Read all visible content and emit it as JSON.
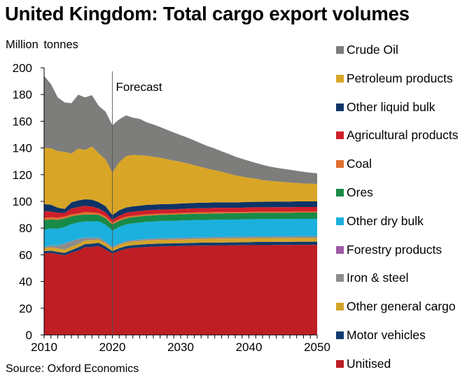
{
  "chart_data": {
    "type": "area",
    "stacked": true,
    "title": "United Kingdom: Total cargo export volumes",
    "ylabel": "Million  tonnes",
    "xlabel": "",
    "source": "Source: Oxford Economics",
    "ylim": [
      0,
      200
    ],
    "yticks": [
      0,
      20,
      40,
      60,
      80,
      100,
      120,
      140,
      160,
      180,
      200
    ],
    "xlim": [
      2010,
      2050
    ],
    "xticks": [
      2010,
      2020,
      2030,
      2040,
      2050
    ],
    "grid": false,
    "legend_position": "right",
    "annotation": {
      "text": "Forecast",
      "x": 2020
    },
    "x": [
      2010,
      2011,
      2012,
      2013,
      2014,
      2015,
      2016,
      2017,
      2018,
      2019,
      2020,
      2021,
      2022,
      2023,
      2024,
      2025,
      2026,
      2027,
      2028,
      2029,
      2030,
      2031,
      2032,
      2033,
      2034,
      2035,
      2036,
      2037,
      2038,
      2039,
      2040,
      2041,
      2042,
      2043,
      2044,
      2045,
      2046,
      2047,
      2048,
      2049,
      2050
    ],
    "series": [
      {
        "name": "Unitised",
        "color": "#BE1E24",
        "values": [
          61,
          61.5,
          60.5,
          59.7,
          61.5,
          63.2,
          65.8,
          65.8,
          66.6,
          64,
          61,
          63,
          64.5,
          65.2,
          65.6,
          65.9,
          66.1,
          66.3,
          66.4,
          66.5,
          66.6,
          66.7,
          66.8,
          66.9,
          66.9,
          67,
          67,
          67.1,
          67.1,
          67.2,
          67.2,
          67.3,
          67.3,
          67.3,
          67.4,
          67.4,
          67.4,
          67.5,
          67.5,
          67.5,
          67.5
        ]
      },
      {
        "name": "Motor vehicles",
        "color": "#0D3A6E",
        "values": [
          1.7,
          1.6,
          1.6,
          1.7,
          2,
          2.4,
          2.2,
          2.5,
          2.4,
          2.3,
          1.7,
          1.9,
          2,
          2,
          2,
          2.1,
          2.1,
          2.1,
          2.1,
          2.1,
          2.1,
          2.1,
          2.2,
          2.2,
          2.2,
          2.2,
          2.2,
          2.2,
          2.2,
          2.2,
          2.3,
          2.3,
          2.3,
          2.3,
          2.3,
          2.3,
          2.3,
          2.3,
          2.3,
          2.3,
          2.3
        ]
      },
      {
        "name": "Other general cargo",
        "color": "#D4A42A",
        "values": [
          2.3,
          2.5,
          2.6,
          2.6,
          2.6,
          2.6,
          2.7,
          2.6,
          2.4,
          2.4,
          2.3,
          2.5,
          2.6,
          2.7,
          2.7,
          2.8,
          2.8,
          2.8,
          2.8,
          2.8,
          2.8,
          2.8,
          2.8,
          2.8,
          2.8,
          2.9,
          2.9,
          2.9,
          2.9,
          2.9,
          2.9,
          2.9,
          2.9,
          2.9,
          2.9,
          2.9,
          2.9,
          2.9,
          2.9,
          2.9,
          2.9
        ]
      },
      {
        "name": "Iron & steel",
        "color": "#8C8C8C",
        "values": [
          0.8,
          1.4,
          2.3,
          4.4,
          4,
          3.5,
          2.1,
          1.9,
          1.4,
          1.2,
          0.8,
          0.9,
          1,
          1,
          1,
          1,
          1,
          1.1,
          1.1,
          1.1,
          1.1,
          1.1,
          1.1,
          1.1,
          1.1,
          1.1,
          1.1,
          1.1,
          1.1,
          1.1,
          1.1,
          1.1,
          1.1,
          1.1,
          1.1,
          1.1,
          1.1,
          1.1,
          1.1,
          1.1,
          1.1
        ]
      },
      {
        "name": "Forestry products",
        "color": "#A05AA5",
        "values": [
          0.1,
          0.1,
          0.1,
          0.1,
          0.1,
          0.1,
          0.1,
          0.1,
          0.1,
          0.1,
          0.1,
          0.1,
          0.1,
          0.1,
          0.1,
          0.1,
          0.1,
          0.1,
          0.1,
          0.1,
          0.1,
          0.1,
          0.1,
          0.1,
          0.1,
          0.1,
          0.1,
          0.1,
          0.1,
          0.1,
          0.1,
          0.1,
          0.1,
          0.1,
          0.1,
          0.1,
          0.1,
          0.1,
          0.1,
          0.1,
          0.1
        ]
      },
      {
        "name": "Other dry bulk",
        "color": "#1CB0DE",
        "values": [
          13,
          12.6,
          12.5,
          12.2,
          12.8,
          12.5,
          12.1,
          12.2,
          12.2,
          12.6,
          12.1,
          12.4,
          12.5,
          12.6,
          12.7,
          12.8,
          12.8,
          12.9,
          12.9,
          12.9,
          13,
          13,
          13,
          13,
          13,
          13,
          13,
          13,
          13,
          13,
          13,
          13,
          13,
          13,
          13,
          13,
          13,
          13,
          13,
          13,
          13
        ]
      },
      {
        "name": "Ores",
        "color": "#188A48",
        "values": [
          7,
          6.8,
          6.6,
          6.5,
          5.8,
          5.4,
          5.2,
          5,
          4.9,
          4.8,
          4.7,
          4.6,
          4.6,
          4.6,
          4.6,
          4.6,
          4.6,
          4.6,
          4.6,
          4.6,
          4.7,
          4.7,
          4.7,
          4.7,
          4.7,
          4.7,
          4.7,
          4.7,
          4.7,
          4.7,
          4.7,
          4.7,
          4.7,
          4.7,
          4.7,
          4.7,
          4.7,
          4.7,
          4.7,
          4.7,
          4.7
        ]
      },
      {
        "name": "Coal",
        "color": "#E0702E",
        "values": [
          1.7,
          1.6,
          1.5,
          1.4,
          1.4,
          1.3,
          1.8,
          1.6,
          1.2,
          1.3,
          1.4,
          1.3,
          1.2,
          1.1,
          1.1,
          1.1,
          1.1,
          1,
          1,
          1,
          1,
          1,
          1,
          1,
          1,
          1,
          1,
          0.9,
          0.9,
          0.9,
          0.9,
          0.9,
          0.9,
          0.9,
          0.9,
          0.9,
          0.9,
          0.9,
          0.9,
          0.9,
          0.9
        ]
      },
      {
        "name": "Agricultural products",
        "color": "#CE1F2A",
        "values": [
          5.2,
          4.3,
          3.8,
          2.6,
          4.5,
          4.8,
          4.7,
          4.5,
          3.5,
          3.1,
          2.1,
          2.6,
          2.9,
          3,
          3,
          3,
          3,
          3,
          3,
          3,
          3,
          3.1,
          3.1,
          3.1,
          3.1,
          3.2,
          3.2,
          3.2,
          3.2,
          3.2,
          3.3,
          3.3,
          3.3,
          3.3,
          3.3,
          3.3,
          3.3,
          3.3,
          3.3,
          3.3,
          3.3
        ]
      },
      {
        "name": "Other liquid bulk",
        "color": "#0E3466",
        "values": [
          5.2,
          5.1,
          3.8,
          3.1,
          4.6,
          4.9,
          4.9,
          5.1,
          4.7,
          4.7,
          3.5,
          4,
          4,
          4,
          4,
          4,
          4,
          4,
          4,
          4,
          4,
          4,
          4,
          4.1,
          4.1,
          4.1,
          4.1,
          4.1,
          4.1,
          4.1,
          4.1,
          4.1,
          4.1,
          4.2,
          4.2,
          4.2,
          4.2,
          4.2,
          4.2,
          4.2,
          4.2
        ]
      },
      {
        "name": "Petroleum products",
        "color": "#D9A526",
        "values": [
          42,
          42.3,
          42.3,
          42.8,
          36.5,
          38.8,
          36.9,
          39.8,
          36.6,
          34.9,
          31.9,
          36,
          38.5,
          38.5,
          37.7,
          36.8,
          35.8,
          34.8,
          33.6,
          32.4,
          31.2,
          29.8,
          28.3,
          26.8,
          25.4,
          24.1,
          22.9,
          21.6,
          20.2,
          19.2,
          18.1,
          17.3,
          16.3,
          15.6,
          15,
          14.6,
          14.2,
          13.8,
          13.5,
          13.3,
          13
        ]
      },
      {
        "name": "Crude Oil",
        "color": "#7D7D7B",
        "values": [
          54,
          48,
          40.3,
          37,
          37.7,
          40.4,
          39.4,
          38.4,
          35.5,
          35.8,
          35.4,
          32.1,
          30.5,
          27.9,
          27.3,
          25,
          24.2,
          23,
          22,
          21.1,
          20,
          19.4,
          18.5,
          17.6,
          16.9,
          16.2,
          15.3,
          14.7,
          14,
          13.3,
          12.6,
          11.8,
          11.4,
          10.7,
          10.3,
          9.9,
          9.6,
          9.1,
          8.6,
          8.2,
          8
        ]
      }
    ]
  },
  "legend_order": [
    "Crude Oil",
    "Petroleum products",
    "Other liquid bulk",
    "Agricultural products",
    "Coal",
    "Ores",
    "Other dry bulk",
    "Forestry products",
    "Iron & steel",
    "Other general cargo",
    "Motor vehicles",
    "Unitised"
  ]
}
